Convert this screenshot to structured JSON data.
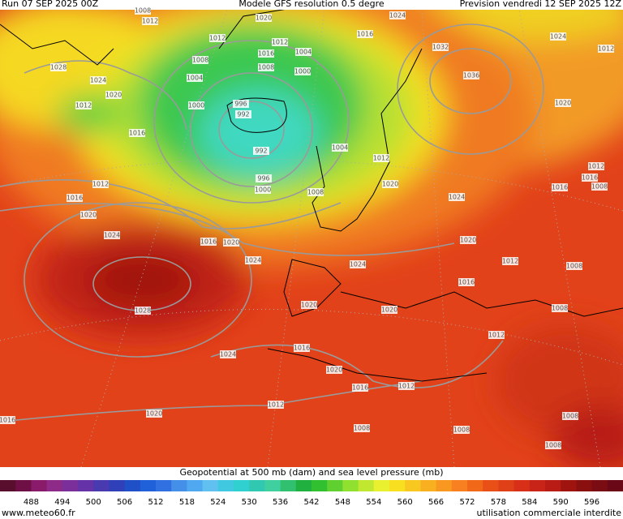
{
  "header": {
    "run": "Run 07 SEP 2025 00Z",
    "model": "Modele GFS resolution 0.5 degre",
    "forecast": "Prevision vendredi 12 SEP 2025 12Z"
  },
  "map": {
    "isobar_labels": [
      1020,
      1008,
      1012,
      1024,
      1016,
      1012,
      1012,
      1016,
      1004,
      1032,
      1024,
      1012,
      1028,
      1008,
      1008,
      1024,
      1004,
      1000,
      1036,
      1020,
      1012,
      996,
      992,
      1000,
      1020,
      1016,
      992,
      1004,
      1012,
      1012,
      996,
      1012,
      1020,
      1016,
      1008,
      1000,
      1008,
      1016,
      1024,
      1016,
      1020,
      1024,
      1016,
      1020,
      1020,
      1024,
      1024,
      1012,
      1008,
      1016,
      1028,
      1020,
      1020,
      1008,
      1012,
      1024,
      1016,
      1020,
      1016,
      1012,
      1012,
      1020,
      1016,
      1008,
      1008,
      1008,
      1008
    ]
  },
  "legend": {
    "title": "Geopotential at 500 mb (dam) and sea level pressure (mb)",
    "ticks": [
      488,
      494,
      500,
      506,
      512,
      518,
      524,
      530,
      536,
      542,
      548,
      554,
      560,
      566,
      572,
      578,
      584,
      590,
      596
    ]
  },
  "footer": {
    "site": "www.meteo60.fr",
    "notice": "utilisation commerciale interdite"
  }
}
